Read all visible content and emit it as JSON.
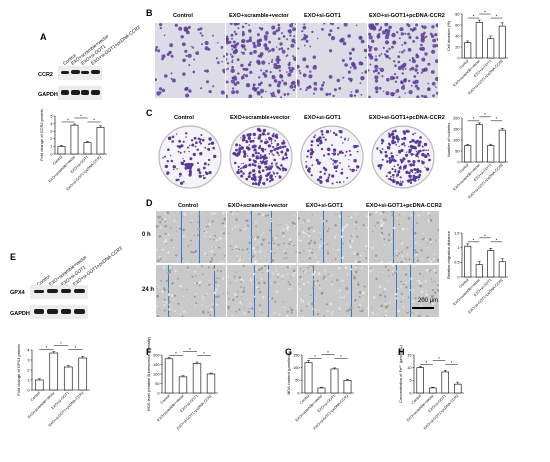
{
  "panels": {
    "A": {
      "letter": "A",
      "groups": [
        "Control",
        "EXO+scramble+vector",
        "EXO+si-GOT1",
        "EXO+si-GOT1+pcDNA-CCR2"
      ],
      "blot_labels": [
        "CCR2",
        "GAPDH"
      ],
      "chart_data": {
        "type": "bar",
        "categories": [
          "Control",
          "EXO+scramble+vector",
          "EXO+si-GOT1",
          "EXO+si-GOT1+pcDNA-CCR2"
        ],
        "values": [
          1.0,
          3.8,
          1.5,
          3.5
        ],
        "errors": [
          0.15,
          0.15,
          0.15,
          0.2
        ],
        "ylabel": "Fold change of CCR2 protein",
        "ylim": [
          0,
          5
        ],
        "yticks": [
          0,
          1,
          2,
          3,
          4,
          5
        ]
      }
    },
    "B": {
      "letter": "B",
      "columns": [
        "Control",
        "EXO+scramble+vector",
        "EXO+si-GOT1",
        "EXO+si-GOT1+pcDNA-CCR2"
      ],
      "chart_data": {
        "type": "bar",
        "categories": [
          "Control",
          "EXO+scramble+vector",
          "EXO+si-GOT1",
          "EXO+si-GOT1+pcDNA-CCR2"
        ],
        "values": [
          28,
          65,
          35,
          58
        ],
        "errors": [
          3,
          4,
          5,
          6
        ],
        "ylabel": "Cell invasion (%)",
        "ylim": [
          0,
          80
        ],
        "yticks": [
          0,
          20,
          40,
          60,
          80
        ]
      }
    },
    "C": {
      "letter": "C",
      "columns": [
        "Control",
        "EXO+scramble+vector",
        "EXO+si-GOT1",
        "EXO+si-GOT1+pcDNA-CCR2"
      ],
      "chart_data": {
        "type": "bar",
        "categories": [
          "Control",
          "EXO+scramble+vector",
          "EXO+si-GOT1",
          "EXO+si-GOT1+pcDNA-CCR2"
        ],
        "values": [
          75,
          170,
          75,
          145
        ],
        "errors": [
          5,
          8,
          6,
          8
        ],
        "ylabel": "Number of colonies",
        "ylim": [
          0,
          200
        ],
        "yticks": [
          0,
          50,
          100,
          150,
          200
        ]
      }
    },
    "D": {
      "letter": "D",
      "columns": [
        "Control",
        "EXO+scramble+vector",
        "EXO+si-GOT1",
        "EXO+si-GOT1+pcDNA-CCR2"
      ],
      "rows": [
        "0 h",
        "24 h"
      ],
      "scale": "200 μm",
      "chart_data": {
        "type": "bar",
        "categories": [
          "Control",
          "EXO+scramble+vector",
          "EXO+si-GOT1",
          "EXO+si-GOT1+pcDNA-CCR2"
        ],
        "values": [
          1.05,
          0.42,
          0.9,
          0.52
        ],
        "errors": [
          0.08,
          0.12,
          0.08,
          0.1
        ],
        "ylabel": "Relative migration distance",
        "ylim": [
          0,
          1.5
        ],
        "yticks": [
          0.0,
          0.5,
          1.0,
          1.5
        ]
      }
    },
    "E": {
      "letter": "E",
      "groups": [
        "Control",
        "EXO+scramble+vector",
        "EXO+si-GOT1",
        "EXO+si-GOT1+pcDNA-CCR2"
      ],
      "blot_labels": [
        "GPX4",
        "GAPDH"
      ],
      "chart_data": {
        "type": "bar",
        "categories": [
          "Control",
          "EXO+scramble+vector",
          "EXO+si-GOT1",
          "EXO+si-GOT1+pcDNA-CCR2"
        ],
        "values": [
          1.0,
          3.7,
          2.3,
          3.2
        ],
        "errors": [
          0.12,
          0.15,
          0.15,
          0.15
        ],
        "ylabel": "Fold change of GPX4 protein",
        "ylim": [
          0,
          4
        ],
        "yticks": [
          0,
          1,
          2,
          3,
          4
        ]
      }
    },
    "F": {
      "letter": "F",
      "chart_data": {
        "type": "bar",
        "categories": [
          "Control",
          "EXO+scramble+vector",
          "EXO+si-GOT1",
          "EXO+si-GOT1+pcDNA-CCR2"
        ],
        "values": [
          180,
          85,
          155,
          100
        ],
        "errors": [
          6,
          6,
          8,
          5
        ],
        "ylabel": "ROS level (relative fluorescence intensity)",
        "ylim": [
          0,
          200
        ],
        "yticks": [
          0,
          50,
          100,
          150,
          200
        ]
      }
    },
    "G": {
      "letter": "G",
      "chart_data": {
        "type": "bar",
        "categories": [
          "Control",
          "EXO+scramble+vector",
          "EXO+si-GOT1",
          "EXO+si-GOT1+pcDNA-CCR2"
        ],
        "values": [
          120,
          20,
          95,
          50
        ],
        "errors": [
          8,
          3,
          4,
          4
        ],
        "ylabel": "MDA content (μmol/mL)",
        "ylim": [
          0,
          150
        ],
        "yticks": [
          0,
          50,
          100,
          150
        ]
      }
    },
    "H": {
      "letter": "H",
      "chart_data": {
        "type": "bar",
        "categories": [
          "Control",
          "EXO+scramble+vector",
          "EXO+si-GOT1",
          "EXO+si-GOT1+pcDNA-CCR2"
        ],
        "values": [
          10,
          2,
          8.3,
          3.5
        ],
        "errors": [
          0.5,
          0.3,
          0.6,
          0.8
        ],
        "ylabel": "Concentration of Fe²⁺ (μmol/mL)",
        "ylim": [
          0,
          15
        ],
        "yticks": [
          0,
          5,
          10,
          15
        ]
      }
    }
  },
  "significance_mark": "*",
  "colors": {
    "stain": "#5a3a96",
    "wound_line": "#2f7bd8",
    "bar_fill": "#ffffff",
    "bar_stroke": "#000000"
  }
}
